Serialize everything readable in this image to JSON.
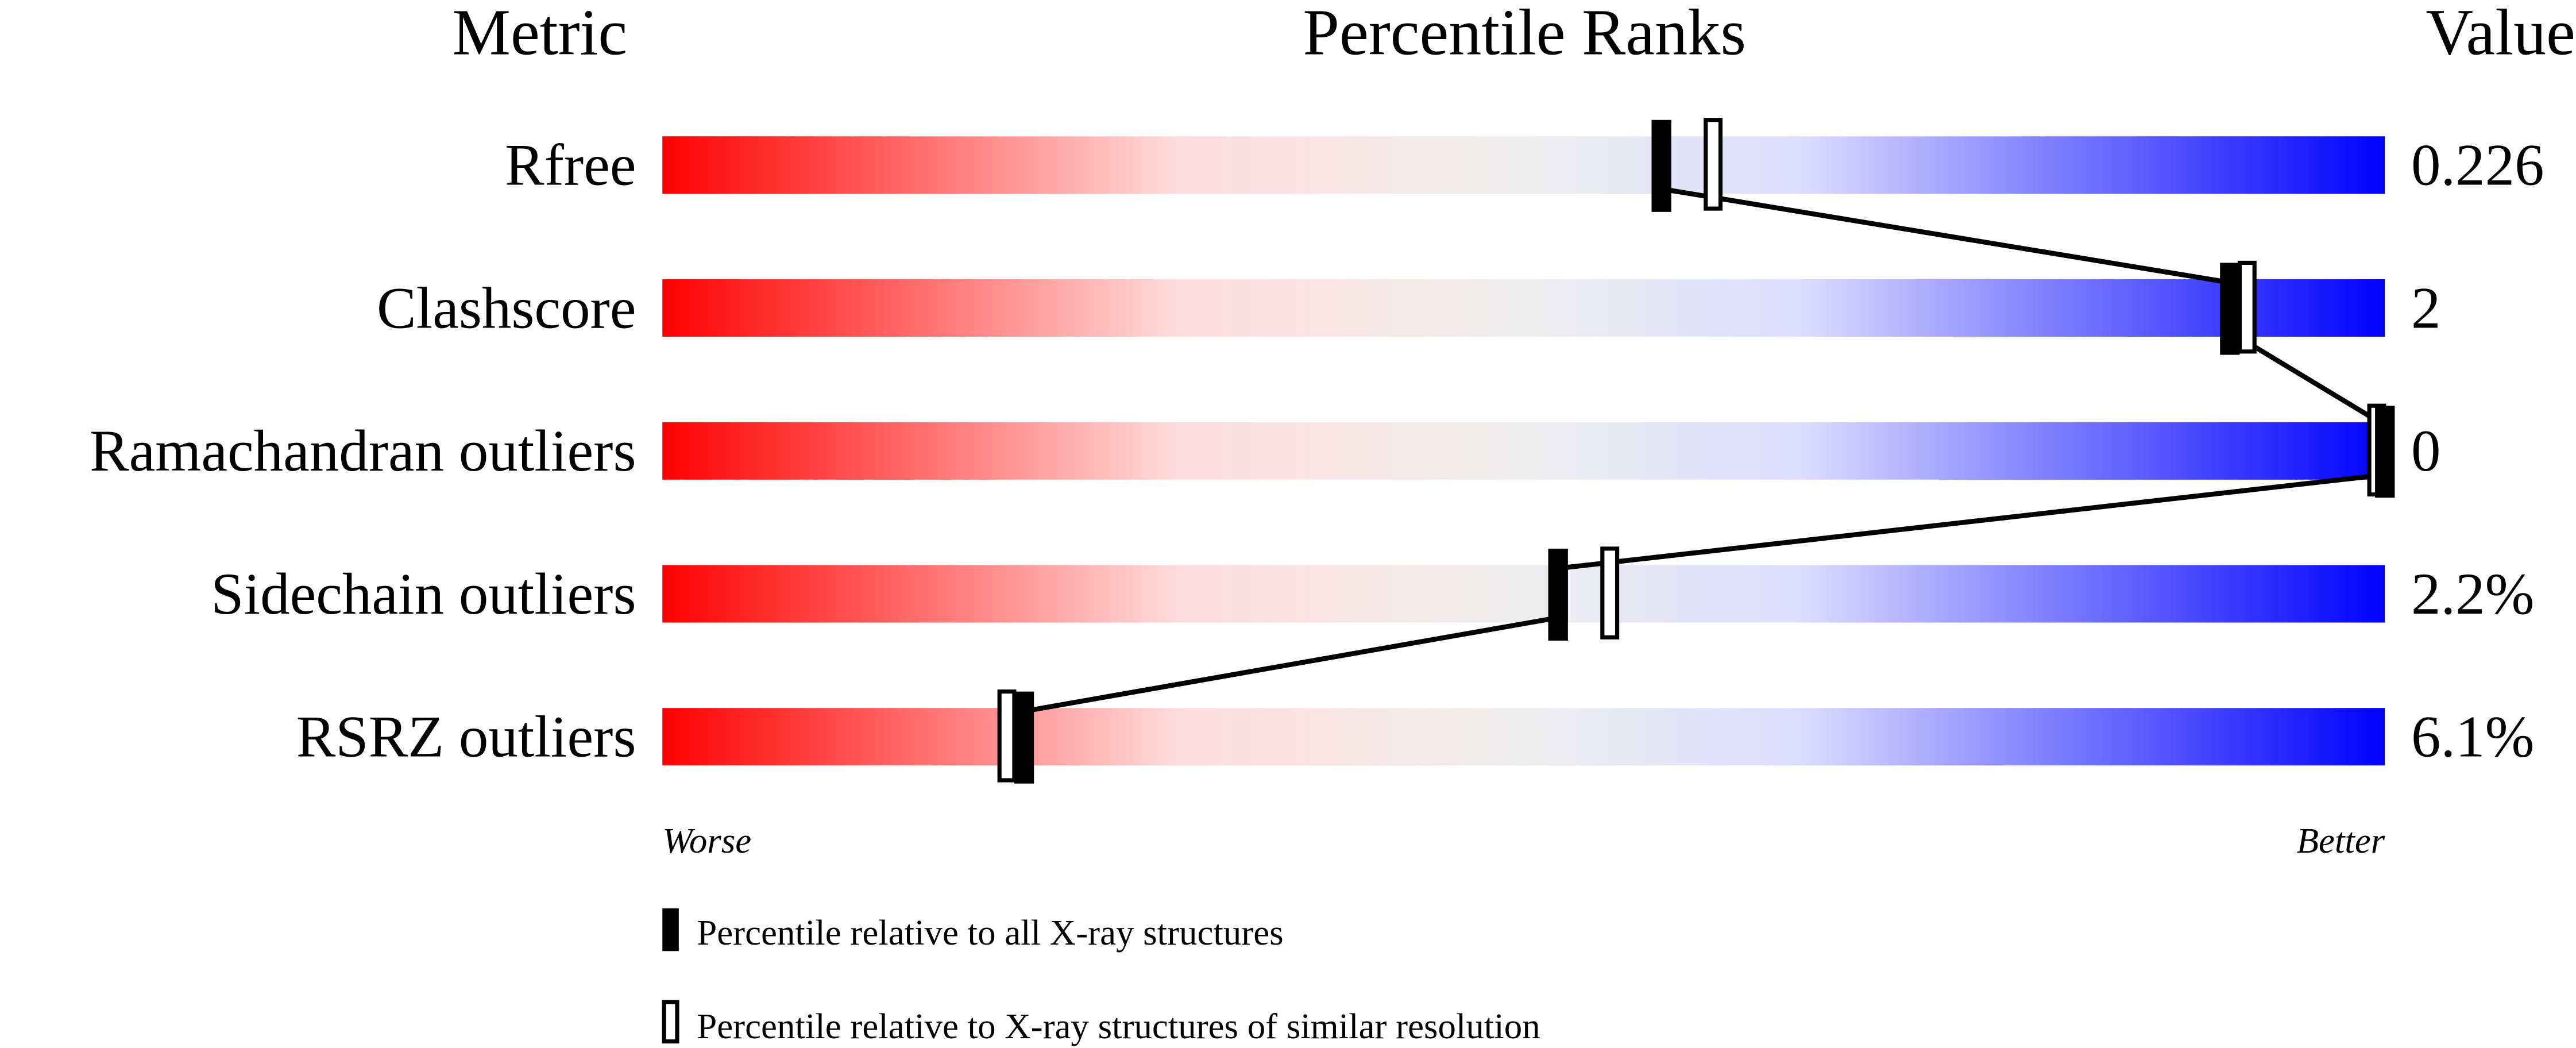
{
  "chart_data": {
    "type": "percentile-slider",
    "headers": {
      "metric": "Metric",
      "ranks": "Percentile Ranks",
      "value": "Value"
    },
    "xlim": [
      0,
      100
    ],
    "axis_labels": {
      "left": "Worse",
      "right": "Better"
    },
    "gradient_colors": [
      "#ff0000",
      "#ffdddd",
      "#eeeeee",
      "#ddddff",
      "#0000ff"
    ],
    "metrics": [
      {
        "name": "Rfree",
        "value": "0.226",
        "percentile_all": 58,
        "percentile_similar": 61
      },
      {
        "name": "Clashscore",
        "value": "2",
        "percentile_all": 91,
        "percentile_similar": 92
      },
      {
        "name": "Ramachandran outliers",
        "value": "0",
        "percentile_all": 100,
        "percentile_similar": 100
      },
      {
        "name": "Sidechain outliers",
        "value": "2.2%",
        "percentile_all": 52,
        "percentile_similar": 55
      },
      {
        "name": "RSRZ outliers",
        "value": "6.1%",
        "percentile_all": 21,
        "percentile_similar": 20
      }
    ],
    "legend": [
      {
        "marker": "filled",
        "label": "Percentile relative to all X-ray structures"
      },
      {
        "marker": "open",
        "label": "Percentile relative to X-ray structures of similar resolution"
      }
    ]
  }
}
